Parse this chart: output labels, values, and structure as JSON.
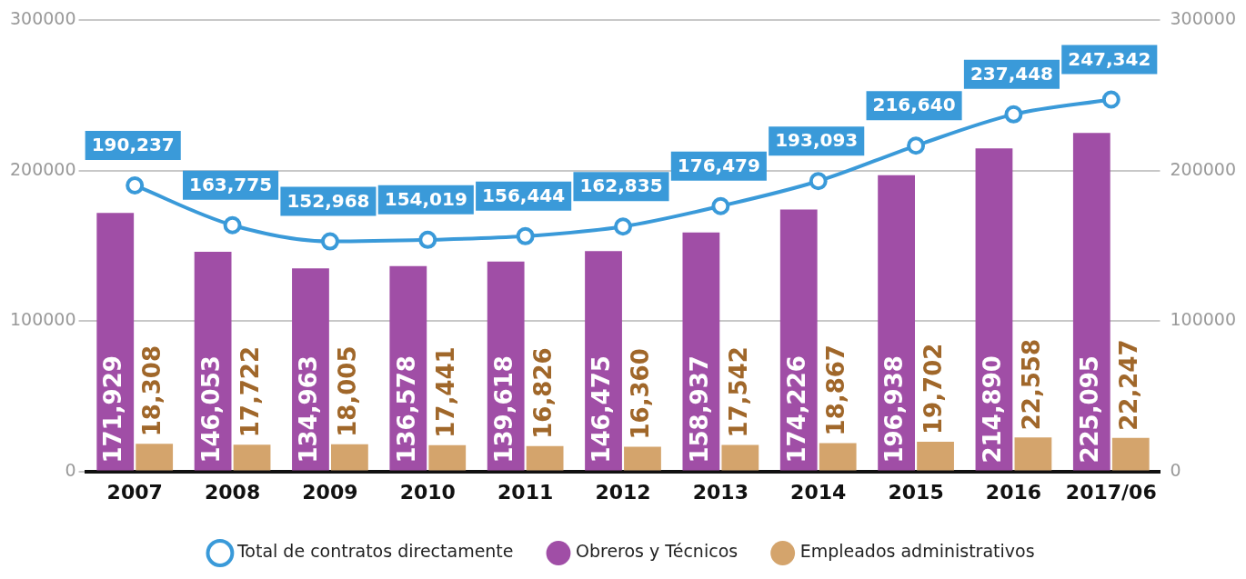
{
  "chart_data": {
    "type": "bar",
    "categories": [
      "2007",
      "2008",
      "2009",
      "2010",
      "2011",
      "2012",
      "2013",
      "2014",
      "2015",
      "2016",
      "2017/06"
    ],
    "series": [
      {
        "name": "Total de contratos directamente",
        "type": "line",
        "color": "#3a9ad9",
        "marker": "circle",
        "values": [
          190237,
          163775,
          152968,
          154019,
          156444,
          162835,
          176479,
          193093,
          216640,
          237448,
          247342
        ],
        "value_labels": [
          "190,237",
          "163,775",
          "152,968",
          "154,019",
          "156,444",
          "162,835",
          "176,479",
          "193,093",
          "216,640",
          "237,448",
          "247,342"
        ]
      },
      {
        "name": "Obreros y Técnicos",
        "color": "#a04ea6",
        "values": [
          171929,
          146053,
          134963,
          136578,
          139618,
          146475,
          158937,
          174226,
          196938,
          214890,
          225095
        ],
        "value_labels": [
          "171,929",
          "146,053",
          "134,963",
          "136,578",
          "139,618",
          "146,475",
          "158,937",
          "174,226",
          "196,938",
          "214,890",
          "225,095"
        ]
      },
      {
        "name": "Empleados administrativos",
        "color": "#d4a46c",
        "values": [
          18308,
          17722,
          18005,
          17441,
          16826,
          16360,
          17542,
          18867,
          19702,
          22558,
          22247
        ],
        "value_labels": [
          "18,308",
          "17,722",
          "18,005",
          "17,441",
          "16,826",
          "16,360",
          "17,542",
          "18,867",
          "19,702",
          "22,558",
          "22,247"
        ]
      }
    ],
    "ylim": [
      0,
      300000
    ],
    "yticks": [
      0,
      100000,
      200000,
      300000
    ],
    "y2lim": [
      0,
      300000
    ],
    "y2ticks": [
      0,
      100000,
      200000,
      300000
    ],
    "grid": "y",
    "legend": "bottom"
  }
}
